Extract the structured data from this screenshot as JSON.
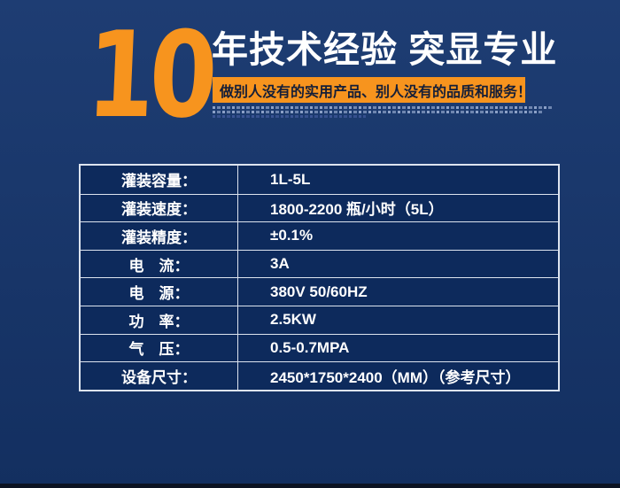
{
  "colors": {
    "background_top": "#1e3d73",
    "background_bottom": "#132f60",
    "accent_orange": "#f7941e",
    "table_cell_bg": "#0d2a5c",
    "table_border": "#dde4ef",
    "banner_text": "#141e38",
    "bottom_bar": "#0c1322"
  },
  "header": {
    "big_number": "10",
    "title": "年技术经验 突显专业",
    "banner_text": "做别人没有的实用产品、别人没有的品质和服务！"
  },
  "spec_table": {
    "rows": [
      {
        "label": "灌装容量：",
        "value": "1L-5L"
      },
      {
        "label": "灌装速度：",
        "value": "1800-2200 瓶/小时（5L）"
      },
      {
        "label": "灌装精度：",
        "value": "±0.1%"
      },
      {
        "label": "电　流：",
        "value": "3A"
      },
      {
        "label": "电　源：",
        "value": "380V 50/60HZ"
      },
      {
        "label": "功　率：",
        "value": "2.5KW"
      },
      {
        "label": "气　压：",
        "value": "0.5-0.7MPA"
      },
      {
        "label": "设备尺寸：",
        "value": "2450*1750*2400（MM）（参考尺寸）"
      }
    ]
  }
}
